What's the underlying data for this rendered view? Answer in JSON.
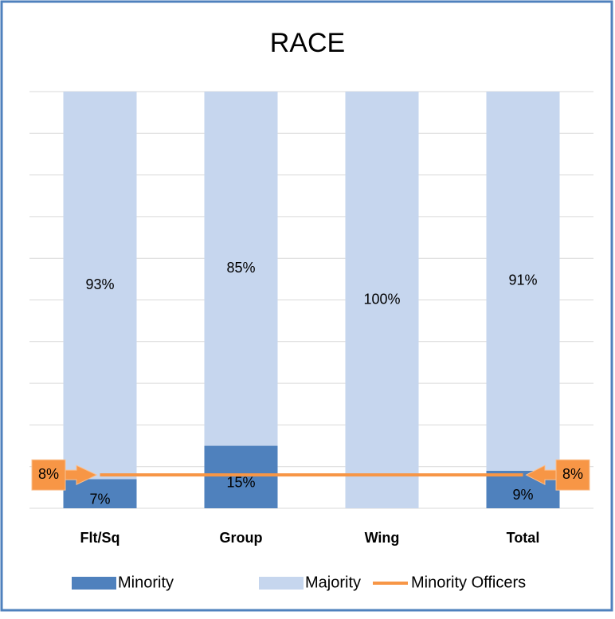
{
  "chart_data": {
    "type": "bar",
    "stacked": true,
    "title": "RACE",
    "categories": [
      "Flt/Sq",
      "Group",
      "Wing",
      "Total"
    ],
    "series": [
      {
        "name": "Minority",
        "color": "#4f81bd",
        "values": [
          7,
          15,
          0,
          9
        ],
        "value_labels": [
          "7%",
          "15%",
          null,
          "9%"
        ]
      },
      {
        "name": "Majority",
        "color": "#c6d6ee",
        "values": [
          93,
          85,
          100,
          91
        ],
        "value_labels": [
          "93%",
          "85%",
          "100%",
          "91%"
        ]
      },
      {
        "name": "Minority Officers",
        "type": "line",
        "color": "#f79646",
        "values": [
          8,
          8,
          8,
          8
        ],
        "value_labels": [
          "8%",
          null,
          null,
          "8%"
        ]
      }
    ],
    "ylim": [
      0,
      100
    ],
    "yticks": [
      0,
      10,
      20,
      30,
      40,
      50,
      60,
      70,
      80,
      90,
      100
    ],
    "grid": true,
    "legend": "bottom"
  }
}
